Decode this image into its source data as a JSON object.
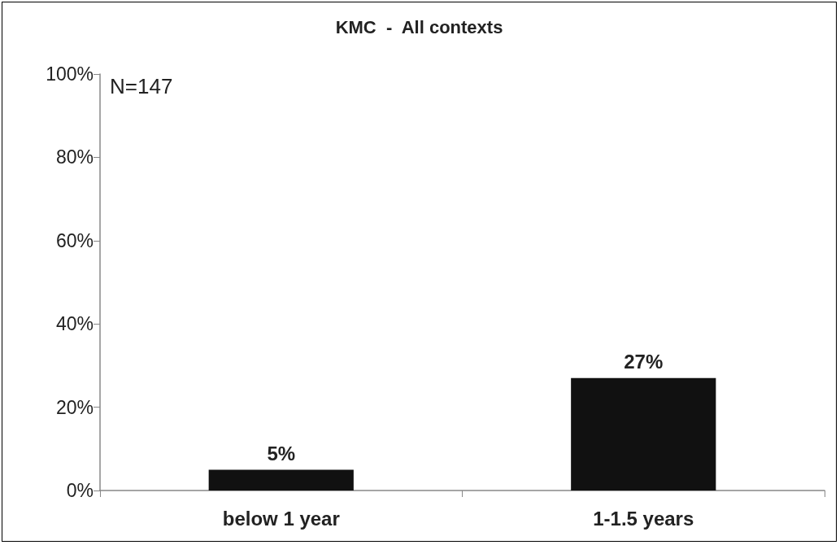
{
  "chart_data": {
    "type": "bar",
    "title": "KMC  -  All contexts",
    "categories": [
      "below 1 year",
      "1-1.5 years"
    ],
    "values": [
      5,
      27
    ],
    "color": "#111111",
    "value_labels": [
      "5%",
      "27%"
    ],
    "ylim": [
      0,
      100
    ],
    "yticks": [
      {
        "value": 0,
        "label": "0%"
      },
      {
        "value": 20,
        "label": "20%"
      },
      {
        "value": 40,
        "label": "40%"
      },
      {
        "value": 60,
        "label": "60%"
      },
      {
        "value": 80,
        "label": "80%"
      },
      {
        "value": 100,
        "label": "100%"
      }
    ],
    "annotations": [
      "N=147"
    ],
    "grid": false
  }
}
